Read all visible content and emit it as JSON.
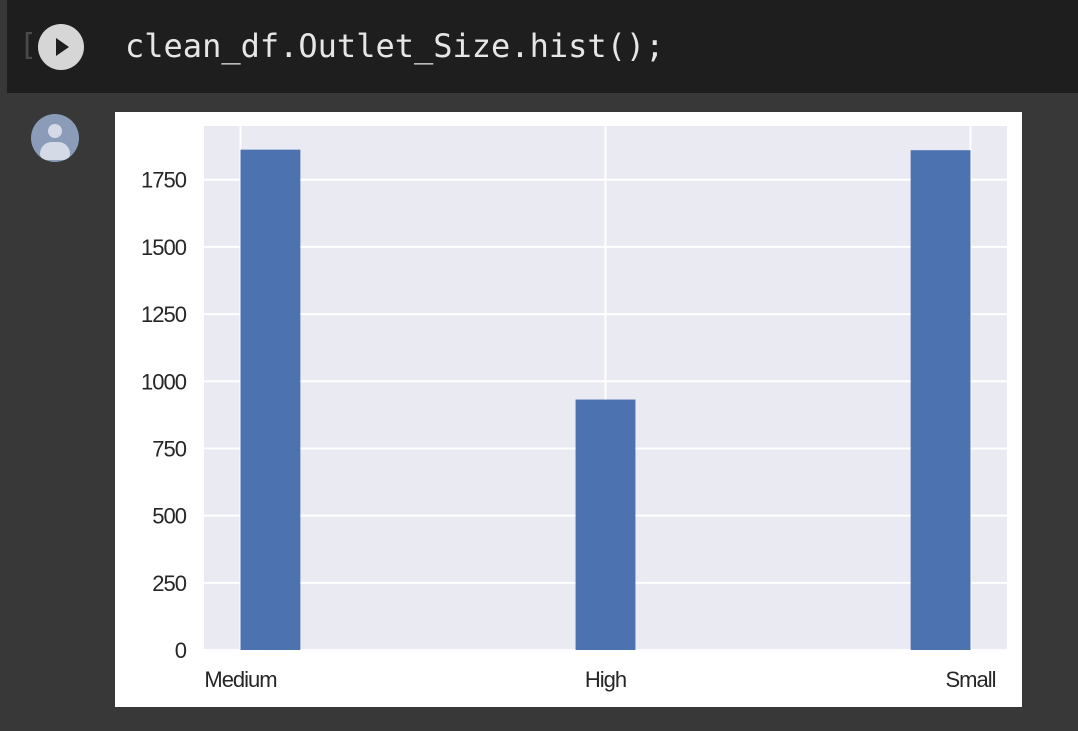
{
  "cell": {
    "execution_count": "[ ]",
    "code": "clean_df.Outlet_Size.hist();"
  },
  "output": {
    "avatar_icon": "user-avatar-icon"
  },
  "chart_data": {
    "type": "bar",
    "categories": [
      "Medium",
      "High",
      "Small"
    ],
    "values": [
      1862,
      932,
      1860
    ],
    "x_positions": [
      0,
      1,
      2
    ],
    "xlim": [
      -0.1,
      2.1
    ],
    "ylim": [
      0,
      1950
    ],
    "yticks": [
      0,
      250,
      500,
      750,
      1000,
      1250,
      1500,
      1750
    ],
    "bar_width": 0.2,
    "bar_color": "#4c72b0",
    "background_color": "#eaeaf2",
    "grid": true,
    "title": "",
    "xlabel": "",
    "ylabel": ""
  }
}
